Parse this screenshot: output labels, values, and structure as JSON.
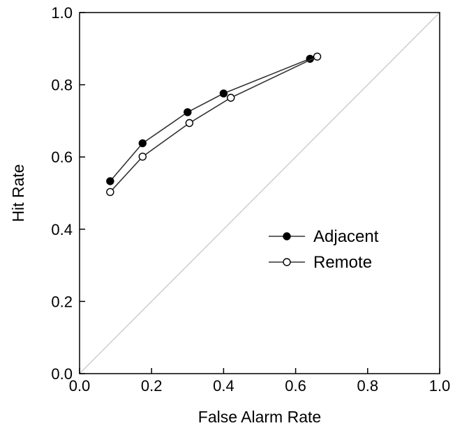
{
  "chart_data": {
    "type": "line",
    "title": "",
    "xlabel": "False Alarm Rate",
    "ylabel": "Hit Rate",
    "xlim": [
      0.0,
      1.0
    ],
    "ylim": [
      0.0,
      1.0
    ],
    "xticks": [
      "0.0",
      "0.2",
      "0.4",
      "0.6",
      "0.8",
      "1.0"
    ],
    "yticks": [
      "0.0",
      "0.2",
      "0.4",
      "0.6",
      "0.8",
      "1.0"
    ],
    "grid": false,
    "legend_position": "right",
    "diagonal_reference": true,
    "colors": {
      "axis": "#000000",
      "diagonal": "#c8c8c8",
      "series_line": "#333333"
    },
    "series": [
      {
        "name": "Adjacent",
        "marker": "filled-circle",
        "x": [
          0.085,
          0.175,
          0.3,
          0.4,
          0.64
        ],
        "y": [
          0.533,
          0.638,
          0.724,
          0.776,
          0.872
        ]
      },
      {
        "name": "Remote",
        "marker": "open-circle",
        "x": [
          0.085,
          0.175,
          0.305,
          0.42,
          0.66
        ],
        "y": [
          0.503,
          0.601,
          0.694,
          0.764,
          0.878
        ]
      }
    ]
  }
}
